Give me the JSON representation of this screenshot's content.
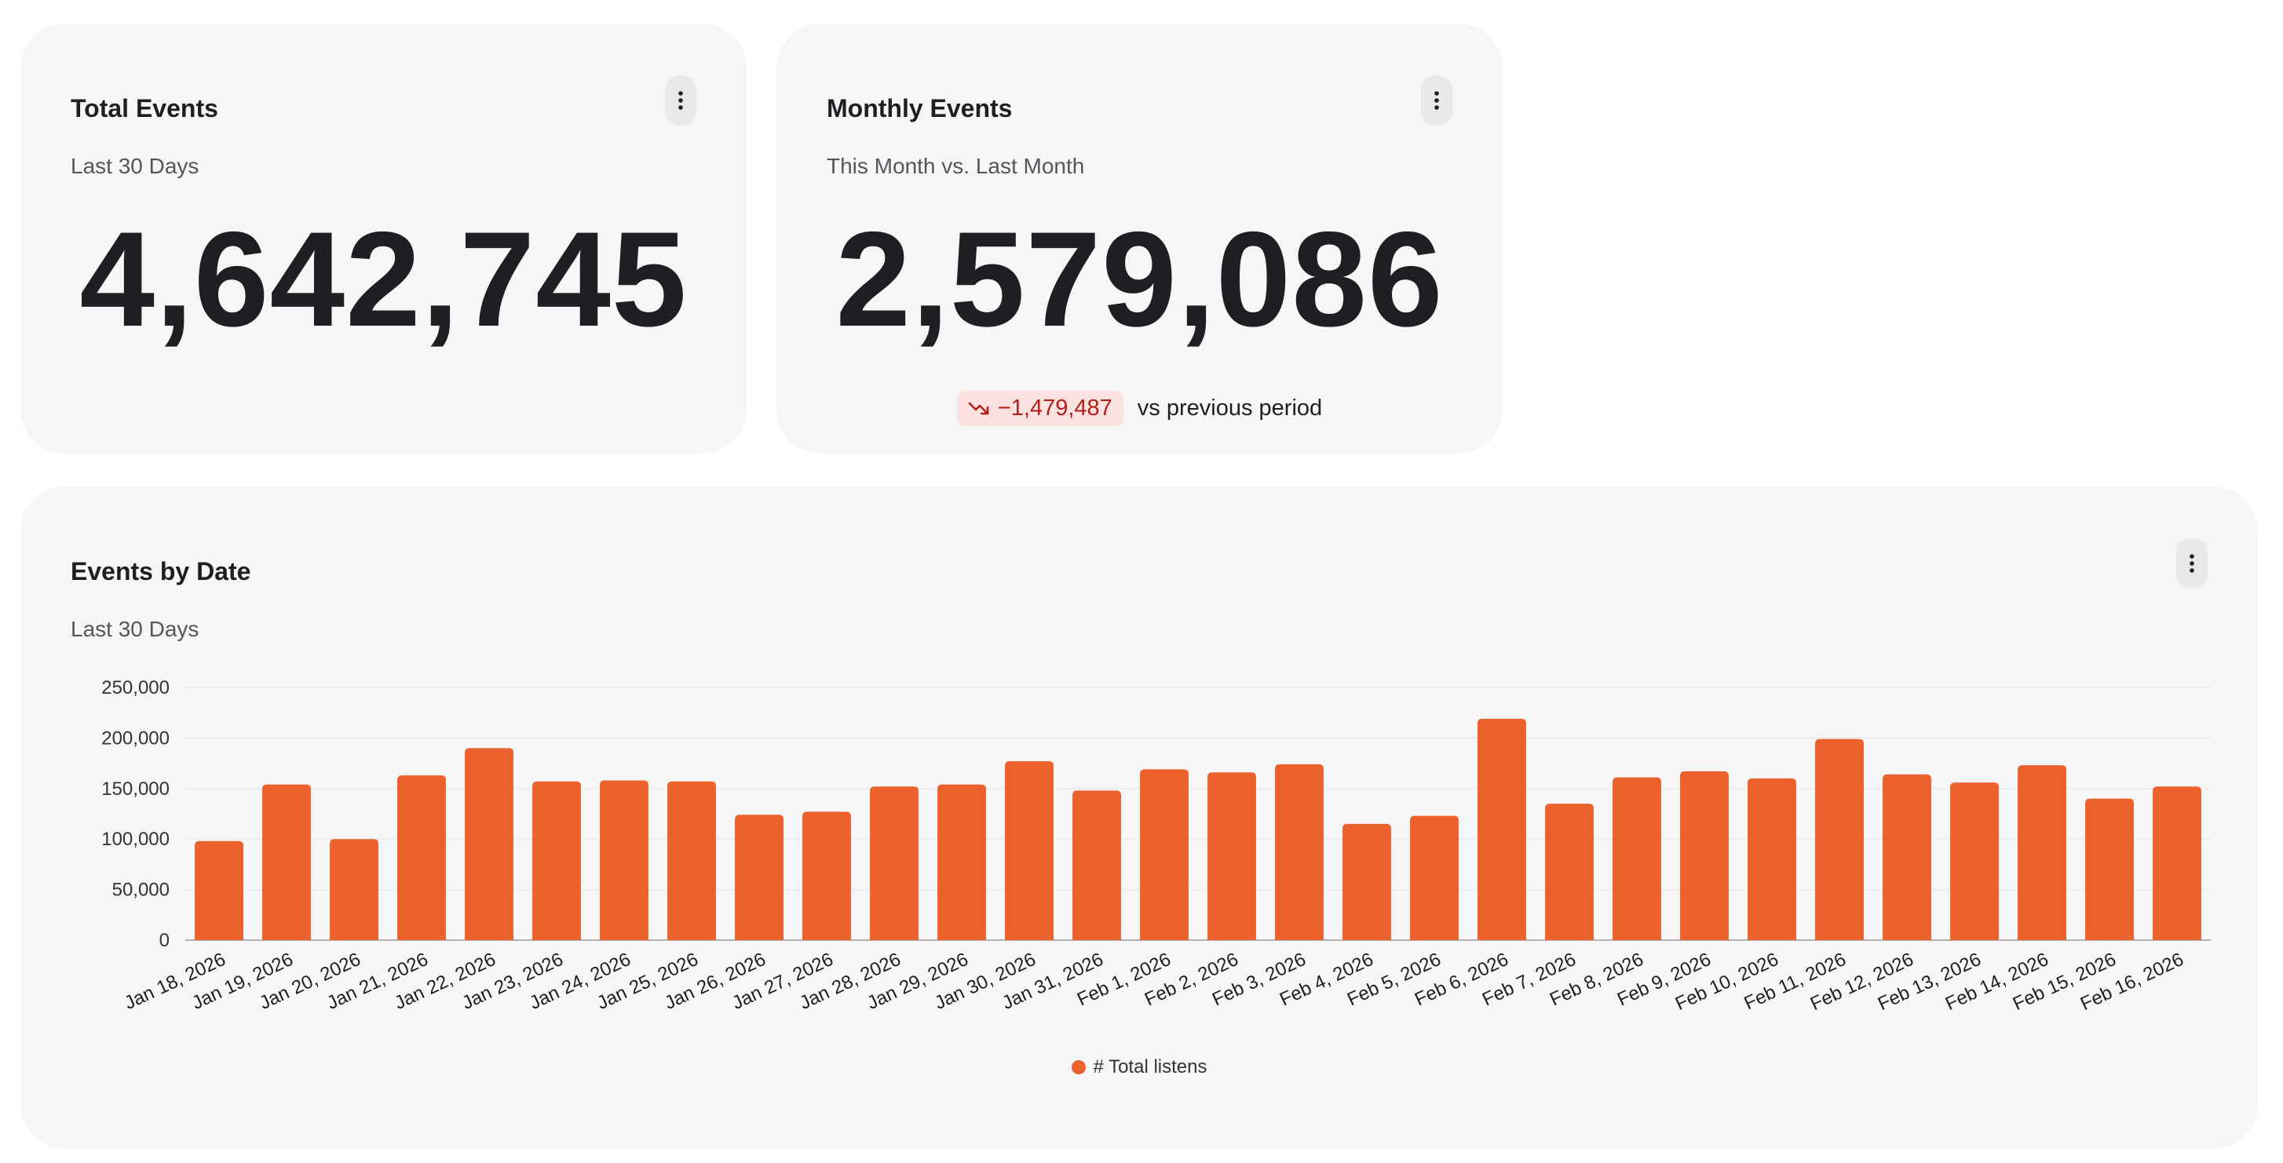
{
  "colors": {
    "accent": "#ec622d",
    "card_bg": "#f6f6f6",
    "negative_bg": "#fbe2e0",
    "negative_text": "#b1211b"
  },
  "total_events": {
    "title": "Total Events",
    "subtitle": "Last 30 Days",
    "value": "4,642,745",
    "menu_icon": "kebab-menu-icon"
  },
  "monthly_events": {
    "title": "Monthly Events",
    "subtitle": "This Month vs. Last Month",
    "value": "2,579,086",
    "delta": "−1,479,487",
    "delta_icon": "trend-down-icon",
    "delta_text": "vs previous period",
    "menu_icon": "kebab-menu-icon"
  },
  "events_by_date": {
    "title": "Events by Date",
    "subtitle": "Last 30 Days",
    "menu_icon": "kebab-menu-icon",
    "legend_label": "# Total listens"
  },
  "chart_data": {
    "type": "bar",
    "title": "Events by Date",
    "subtitle": "Last 30 Days",
    "xlabel": "",
    "ylabel": "",
    "ylim": [
      0,
      250000
    ],
    "yticks": [
      0,
      50000,
      100000,
      150000,
      200000,
      250000
    ],
    "ytick_labels": [
      "0",
      "50,000",
      "100,000",
      "150,000",
      "200,000",
      "250,000"
    ],
    "grid": true,
    "legend_position": "bottom",
    "categories": [
      "Jan 18, 2026",
      "Jan 19, 2026",
      "Jan 20, 2026",
      "Jan 21, 2026",
      "Jan 22, 2026",
      "Jan 23, 2026",
      "Jan 24, 2026",
      "Jan 25, 2026",
      "Jan 26, 2026",
      "Jan 27, 2026",
      "Jan 28, 2026",
      "Jan 29, 2026",
      "Jan 30, 2026",
      "Jan 31, 2026",
      "Feb 1, 2026",
      "Feb 2, 2026",
      "Feb 3, 2026",
      "Feb 4, 2026",
      "Feb 5, 2026",
      "Feb 6, 2026",
      "Feb 7, 2026",
      "Feb 8, 2026",
      "Feb 9, 2026",
      "Feb 10, 2026",
      "Feb 11, 2026",
      "Feb 12, 2026",
      "Feb 13, 2026",
      "Feb 14, 2026",
      "Feb 15, 2026",
      "Feb 16, 2026"
    ],
    "series": [
      {
        "name": "# Total listens",
        "color": "#ec622d",
        "values": [
          98000,
          154000,
          100000,
          163000,
          190000,
          157000,
          158000,
          157000,
          124000,
          127000,
          152000,
          154000,
          177000,
          148000,
          169000,
          166000,
          174000,
          115000,
          123000,
          219000,
          135000,
          161000,
          167000,
          160000,
          199000,
          164000,
          156000,
          173000,
          140000,
          152000
        ]
      }
    ]
  }
}
